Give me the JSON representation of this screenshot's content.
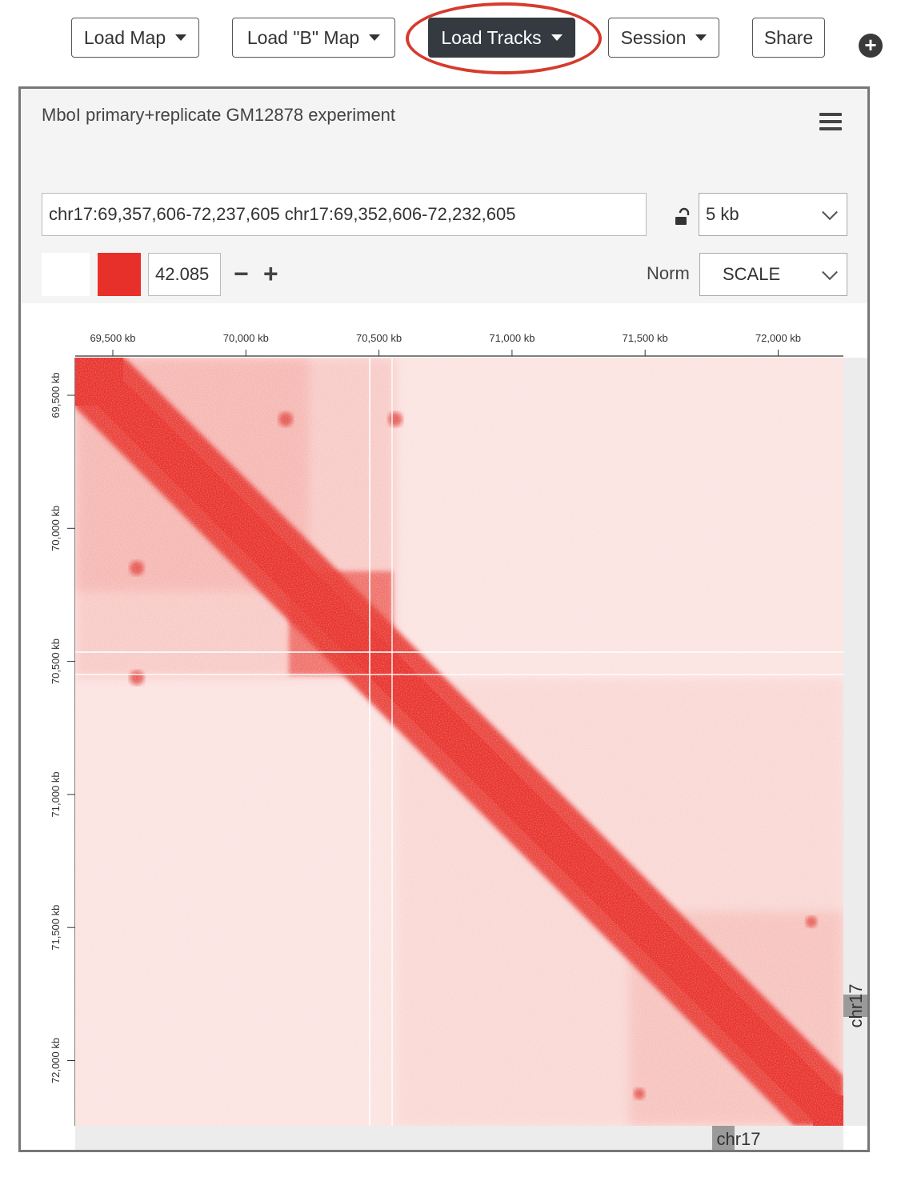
{
  "toolbar": {
    "load_map": "Load Map",
    "load_b_map": "Load \"B\" Map",
    "load_tracks": "Load Tracks",
    "session": "Session",
    "share": "Share",
    "add_icon": "plus-circle-icon"
  },
  "panel": {
    "title": "MboI primary+replicate GM12878 experiment",
    "locus": "chr17:69,357,606-72,237,605 chr17:69,352,606-72,232,605",
    "resolution": "5 kb",
    "threshold": "42.085",
    "minus": "−",
    "plus": "+",
    "norm_label": "Norm",
    "norm_value": "SCALE",
    "colors": {
      "background": "#ffffff",
      "contact": "#e8302a"
    }
  },
  "ruler": {
    "x_ticks": [
      "69,500 kb",
      "70,000 kb",
      "70,500 kb",
      "71,000 kb",
      "71,500 kb",
      "72,000 kb"
    ],
    "y_ticks": [
      "69,500 kb",
      "70,000 kb",
      "70,500 kb",
      "71,000 kb",
      "71,500 kb",
      "72,000 kb"
    ],
    "x_chrom": "chr17",
    "y_chrom": "chr17"
  }
}
